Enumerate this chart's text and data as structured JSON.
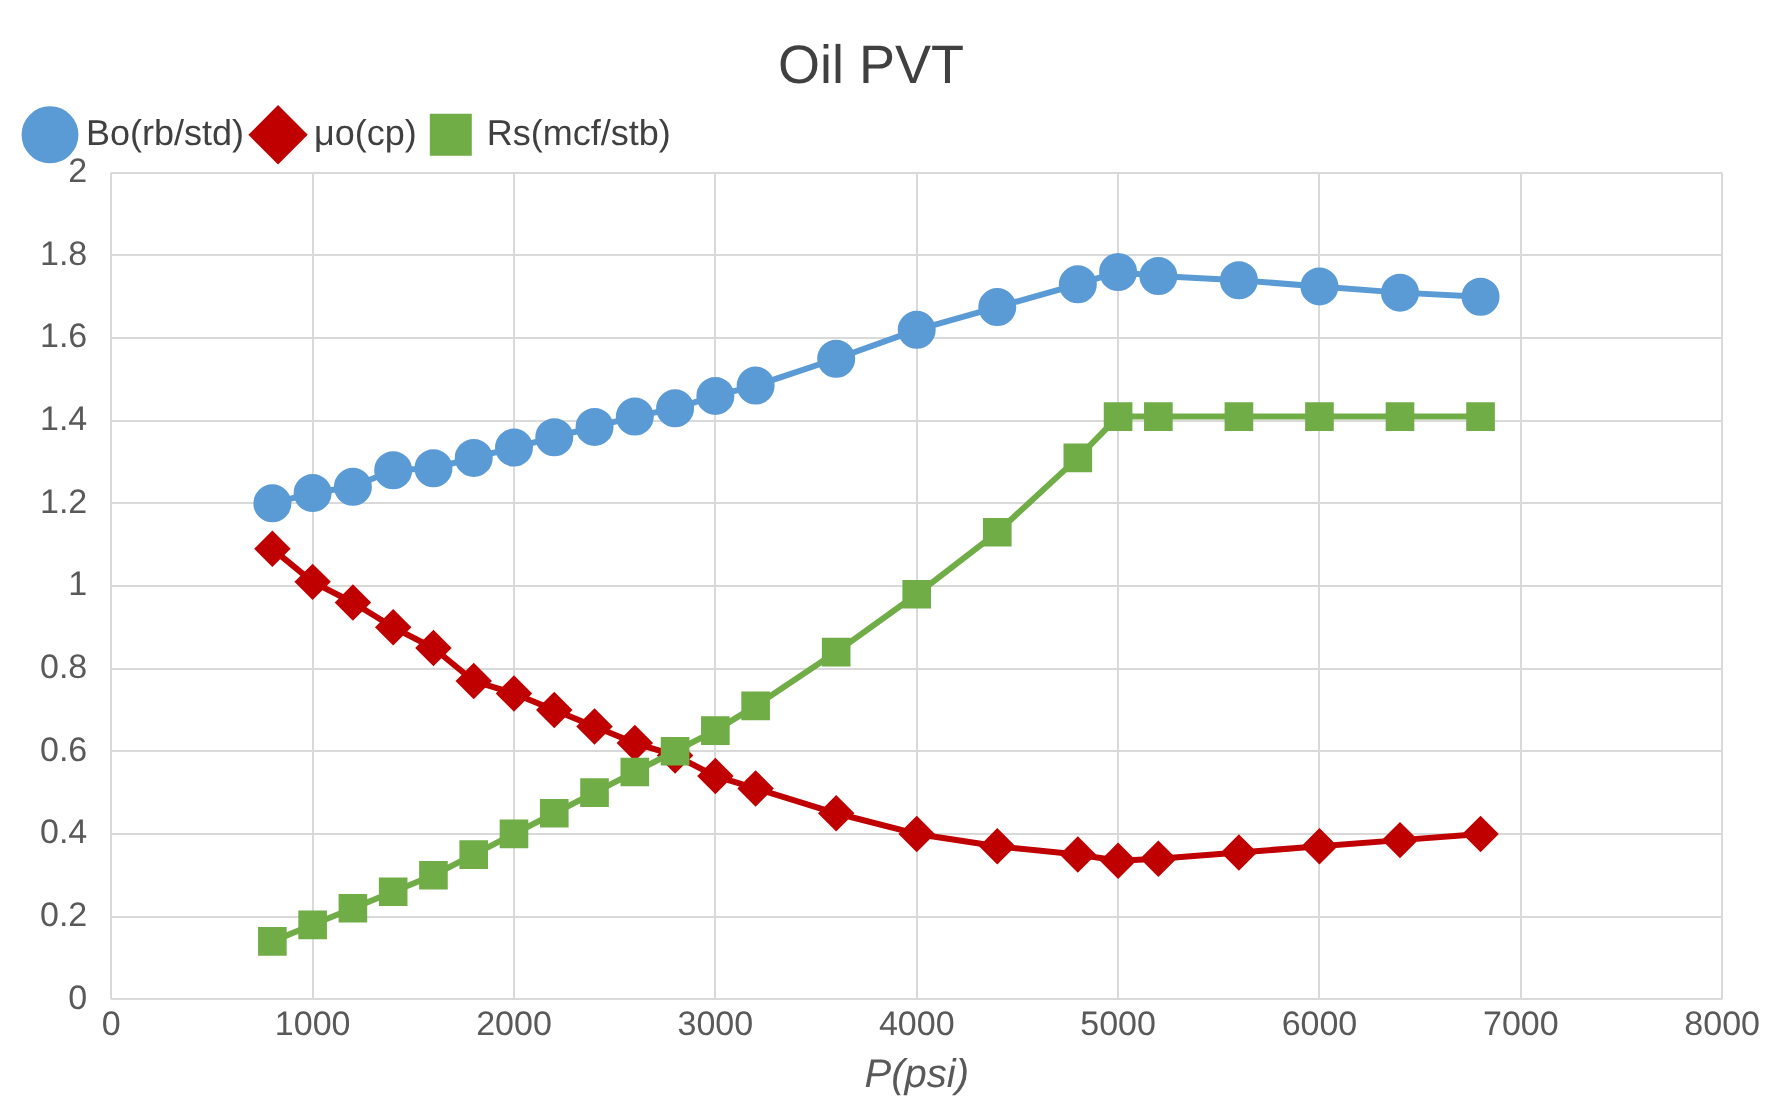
{
  "chart_data": {
    "type": "line",
    "title": "Oil PVT",
    "xlabel": "P(psi)",
    "x": [
      800,
      1000,
      1200,
      1400,
      1600,
      1800,
      2000,
      2200,
      2400,
      2600,
      2800,
      3000,
      3200,
      3600,
      4000,
      4400,
      4800,
      5000,
      5200,
      5600,
      6000,
      6400,
      6800
    ],
    "series": [
      {
        "name": "Bo(rb/std)",
        "color": "#5b9bd5",
        "marker": "circle",
        "values": [
          1.2,
          1.225,
          1.24,
          1.28,
          1.285,
          1.31,
          1.335,
          1.36,
          1.385,
          1.41,
          1.43,
          1.46,
          1.485,
          1.55,
          1.62,
          1.675,
          1.73,
          1.76,
          1.75,
          1.74,
          1.725,
          1.71,
          1.7
        ]
      },
      {
        "name": "μo(cp)",
        "color": "#c00000",
        "marker": "diamond",
        "values": [
          1.09,
          1.01,
          0.96,
          0.9,
          0.85,
          0.77,
          0.74,
          0.7,
          0.66,
          0.62,
          0.59,
          0.54,
          0.51,
          0.45,
          0.4,
          0.37,
          0.35,
          0.335,
          0.34,
          0.355,
          0.37,
          0.385,
          0.4
        ]
      },
      {
        "name": "Rs(mcf/stb)",
        "color": "#70ad47",
        "marker": "square",
        "values": [
          0.14,
          0.18,
          0.22,
          0.26,
          0.3,
          0.35,
          0.4,
          0.45,
          0.5,
          0.55,
          0.6,
          0.65,
          0.71,
          0.84,
          0.98,
          1.13,
          1.31,
          1.41,
          1.41,
          1.41,
          1.41,
          1.41,
          1.41
        ]
      }
    ],
    "xlim": [
      0,
      8000
    ],
    "xticks": [
      0,
      1000,
      2000,
      3000,
      4000,
      5000,
      6000,
      7000,
      8000
    ],
    "ylim": [
      0,
      2
    ],
    "yticks": [
      0,
      0.2,
      0.4,
      0.6,
      0.8,
      1,
      1.2,
      1.4,
      1.6,
      1.8,
      2
    ],
    "grid": true,
    "legend": "top left"
  }
}
